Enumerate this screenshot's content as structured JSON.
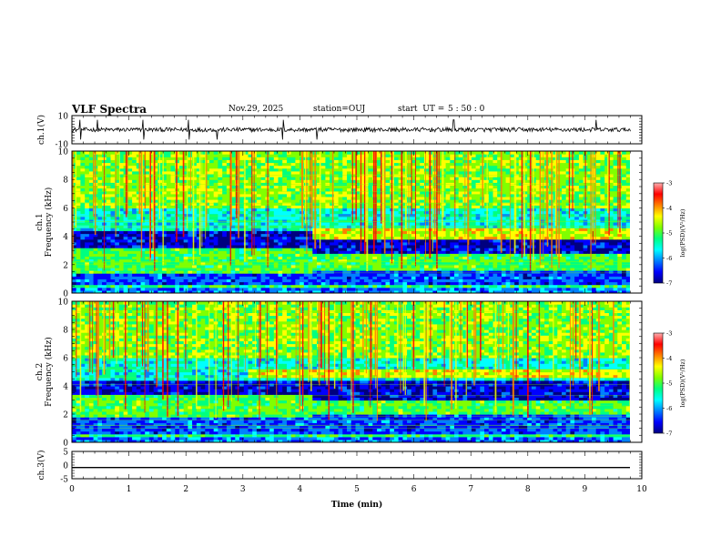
{
  "header": {
    "title": "VLF Spectra",
    "date": "Nov.29, 2025",
    "station": "station=OUJ",
    "start_label": "start  UT =",
    "start_time": "5 : 50 : 0"
  },
  "colors": {
    "background": "#ffffff",
    "frame": "#000000",
    "colorscale": [
      "#00007f",
      "#0000ff",
      "#0080ff",
      "#00ffff",
      "#00ff80",
      "#80ff00",
      "#ffff00",
      "#ff8000",
      "#ff0000",
      "#ffb0b0"
    ]
  },
  "chart_data": [
    {
      "type": "line",
      "ylabel": "ch.1(V)",
      "ylim": [
        -10,
        10
      ],
      "yticks": [
        "10",
        "-10"
      ],
      "xlim": [
        0,
        10
      ],
      "series": [
        {
          "baseline": 0,
          "noise_amplitude": 1.5,
          "spikes": [
            0.15,
            0.45,
            1.25,
            2.05,
            2.55,
            3.7,
            4.3,
            6.7,
            9.2
          ]
        }
      ]
    },
    {
      "type": "heatmap",
      "ylabel": "ch.1\nFrequency (kHz)",
      "ylim": [
        0,
        10
      ],
      "yticks": [
        "0",
        "2",
        "4",
        "6",
        "8",
        "10"
      ],
      "xlim": [
        0,
        9.8
      ],
      "band_edges_before": [
        1.5,
        3.2
      ],
      "band_edges_after": [
        1.6,
        2.9
      ],
      "transition_time": 4.2,
      "emission_band": {
        "start": 4.2,
        "low_khz": 3.9,
        "high_khz": 4.5
      },
      "colorbar": {
        "label": "log(PSD)(V²/Hz)",
        "ticks": [
          "-3",
          "-4",
          "-5",
          "-6",
          "-7"
        ],
        "range": [
          -7,
          -3
        ]
      }
    },
    {
      "type": "heatmap",
      "ylabel": "ch.2\nFrequency (kHz)",
      "ylim": [
        0,
        10
      ],
      "yticks": [
        "0",
        "2",
        "4",
        "6",
        "8",
        "10"
      ],
      "xlim": [
        0,
        9.8
      ],
      "band_edges_before": [
        1.8,
        3.4
      ],
      "band_edges_after": [
        2.0,
        3.0
      ],
      "transition_time": 4.2,
      "emission_band": {
        "start": 3.1,
        "low_khz": 4.6,
        "high_khz": 5.2
      },
      "colorbar": {
        "label": "log(PSD)(V²/Hz)",
        "ticks": [
          "-3",
          "-4",
          "-5",
          "-6",
          "-7"
        ],
        "range": [
          -7,
          -3
        ]
      }
    },
    {
      "type": "line",
      "ylabel": "ch.3(V)",
      "ylim": [
        -5,
        5
      ],
      "yticks": [
        "5",
        "0",
        "-5"
      ],
      "xlim": [
        0,
        10
      ],
      "series": [
        {
          "value": -0.9
        }
      ]
    }
  ],
  "xaxis": {
    "label": "Time (min)",
    "ticks": [
      "0",
      "1",
      "2",
      "3",
      "4",
      "5",
      "6",
      "7",
      "8",
      "9",
      "10"
    ]
  }
}
